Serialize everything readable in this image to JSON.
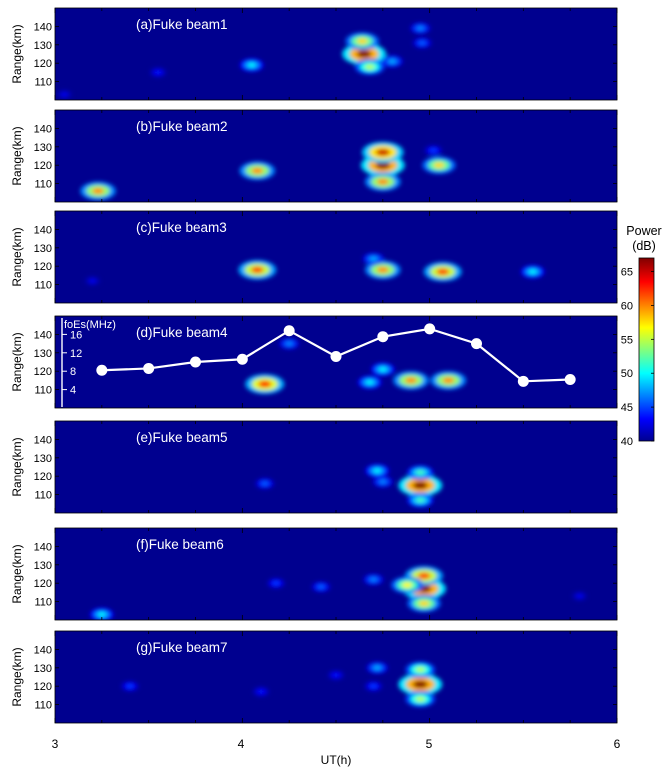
{
  "figure": {
    "x_axis_label": "UT(h)",
    "y_axis_label": "Range(km)",
    "colorbar_title": "Power",
    "colorbar_unit": "(dB)"
  },
  "chart_data": {
    "type": "heatmap",
    "x": {
      "label": "UT(h)",
      "range": [
        3,
        6
      ],
      "ticks": [
        3,
        4,
        5,
        6
      ]
    },
    "y": {
      "label": "Range(km)",
      "range": [
        100,
        150
      ],
      "ticks": [
        110,
        120,
        130,
        140
      ]
    },
    "colorbar": {
      "label": "Power (dB)",
      "range": [
        40,
        67
      ],
      "ticks": [
        40,
        45,
        50,
        55,
        60,
        65
      ],
      "colormap": "jet"
    },
    "panels": [
      {
        "title": "(a)Fuke beam1",
        "blobs": [
          {
            "ut": 4.65,
            "range": 125,
            "power": 67
          },
          {
            "ut": 4.64,
            "range": 132,
            "power": 58
          },
          {
            "ut": 4.68,
            "range": 118,
            "power": 55
          },
          {
            "ut": 4.8,
            "range": 121,
            "power": 48
          },
          {
            "ut": 4.95,
            "range": 139,
            "power": 47
          },
          {
            "ut": 4.96,
            "range": 131,
            "power": 46
          },
          {
            "ut": 4.05,
            "range": 119,
            "power": 50
          },
          {
            "ut": 3.55,
            "range": 115,
            "power": 44
          },
          {
            "ut": 3.05,
            "range": 103,
            "power": 43
          }
        ]
      },
      {
        "title": "(b)Fuke beam2",
        "blobs": [
          {
            "ut": 4.75,
            "range": 120,
            "power": 67
          },
          {
            "ut": 4.75,
            "range": 127,
            "power": 65
          },
          {
            "ut": 4.75,
            "range": 111,
            "power": 60
          },
          {
            "ut": 4.08,
            "range": 117,
            "power": 60
          },
          {
            "ut": 5.05,
            "range": 120,
            "power": 58
          },
          {
            "ut": 3.23,
            "range": 106,
            "power": 60
          },
          {
            "ut": 5.02,
            "range": 128,
            "power": 45
          }
        ]
      },
      {
        "title": "(c)Fuke beam3",
        "blobs": [
          {
            "ut": 4.08,
            "range": 118,
            "power": 62
          },
          {
            "ut": 4.75,
            "range": 118,
            "power": 60
          },
          {
            "ut": 5.07,
            "range": 117,
            "power": 62
          },
          {
            "ut": 5.55,
            "range": 117,
            "power": 50
          },
          {
            "ut": 4.7,
            "range": 124,
            "power": 48
          },
          {
            "ut": 3.2,
            "range": 112,
            "power": 43
          }
        ]
      },
      {
        "title": "(d)Fuke beam4",
        "blobs": [
          {
            "ut": 4.12,
            "range": 113,
            "power": 63
          },
          {
            "ut": 4.9,
            "range": 115,
            "power": 60
          },
          {
            "ut": 5.1,
            "range": 115,
            "power": 60
          },
          {
            "ut": 4.75,
            "range": 121,
            "power": 50
          },
          {
            "ut": 4.68,
            "range": 114,
            "power": 50
          },
          {
            "ut": 4.25,
            "range": 135,
            "power": 47
          }
        ],
        "overlay": {
          "label": "foEs(MHz)",
          "axis_ticks": [
            4,
            8,
            12,
            16
          ],
          "axis_range": [
            0,
            20
          ],
          "points": [
            {
              "ut": 3.25,
              "foEs": 8.2
            },
            {
              "ut": 3.5,
              "foEs": 8.6
            },
            {
              "ut": 3.75,
              "foEs": 10.0
            },
            {
              "ut": 4.0,
              "foEs": 10.6
            },
            {
              "ut": 4.25,
              "foEs": 16.8
            },
            {
              "ut": 4.5,
              "foEs": 11.2
            },
            {
              "ut": 4.75,
              "foEs": 15.5
            },
            {
              "ut": 5.0,
              "foEs": 17.2
            },
            {
              "ut": 5.25,
              "foEs": 14.0
            },
            {
              "ut": 5.5,
              "foEs": 5.8
            },
            {
              "ut": 5.75,
              "foEs": 6.2
            }
          ]
        }
      },
      {
        "title": "(e)Fuke beam5",
        "blobs": [
          {
            "ut": 4.95,
            "range": 115,
            "power": 67
          },
          {
            "ut": 4.95,
            "range": 122,
            "power": 52
          },
          {
            "ut": 4.95,
            "range": 107,
            "power": 52
          },
          {
            "ut": 4.72,
            "range": 123,
            "power": 50
          },
          {
            "ut": 4.75,
            "range": 117,
            "power": 47
          },
          {
            "ut": 4.12,
            "range": 116,
            "power": 46
          }
        ]
      },
      {
        "title": "(f)Fuke beam6",
        "blobs": [
          {
            "ut": 4.97,
            "range": 117,
            "power": 67
          },
          {
            "ut": 4.97,
            "range": 124,
            "power": 62
          },
          {
            "ut": 4.97,
            "range": 109,
            "power": 58
          },
          {
            "ut": 4.88,
            "range": 119,
            "power": 57
          },
          {
            "ut": 4.7,
            "range": 122,
            "power": 47
          },
          {
            "ut": 4.42,
            "range": 118,
            "power": 46
          },
          {
            "ut": 4.18,
            "range": 120,
            "power": 45
          },
          {
            "ut": 3.25,
            "range": 103,
            "power": 50
          },
          {
            "ut": 5.8,
            "range": 113,
            "power": 43
          }
        ]
      },
      {
        "title": "(g)Fuke beam7",
        "blobs": [
          {
            "ut": 4.95,
            "range": 121,
            "power": 67
          },
          {
            "ut": 4.95,
            "range": 129,
            "power": 55
          },
          {
            "ut": 4.95,
            "range": 113,
            "power": 55
          },
          {
            "ut": 4.72,
            "range": 130,
            "power": 48
          },
          {
            "ut": 4.7,
            "range": 120,
            "power": 45
          },
          {
            "ut": 4.1,
            "range": 117,
            "power": 44
          },
          {
            "ut": 3.4,
            "range": 120,
            "power": 45
          },
          {
            "ut": 4.5,
            "range": 126,
            "power": 44
          }
        ]
      }
    ]
  }
}
